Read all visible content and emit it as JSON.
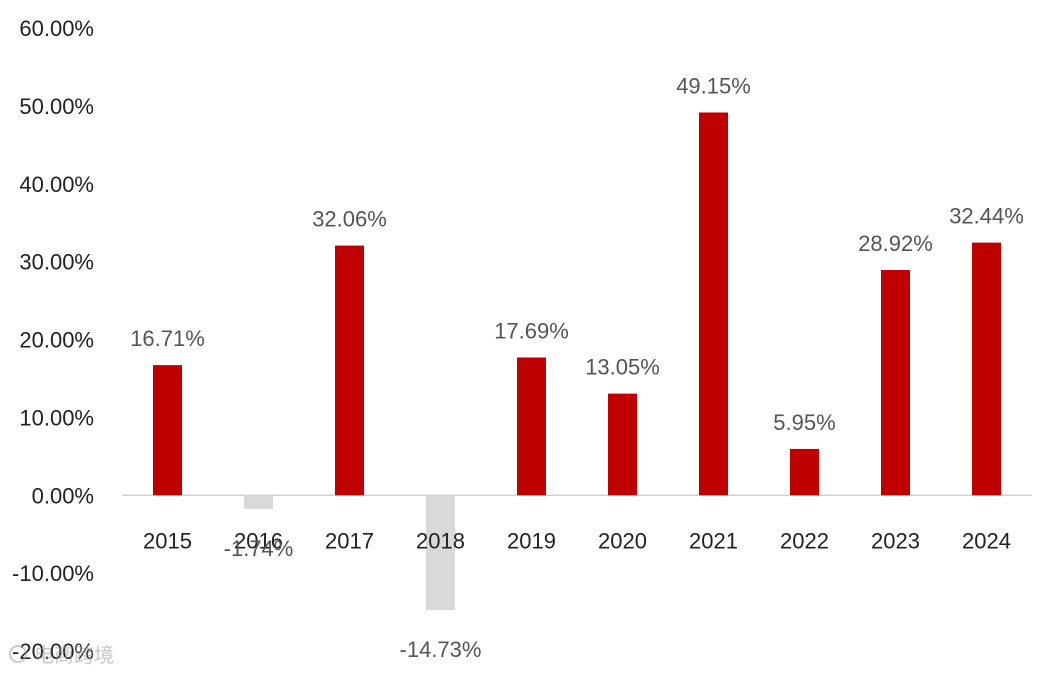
{
  "chart_data": {
    "type": "bar",
    "title": "",
    "xlabel": "",
    "ylabel": "",
    "categories": [
      "2015",
      "2016",
      "2017",
      "2018",
      "2019",
      "2020",
      "2021",
      "2022",
      "2023",
      "2024"
    ],
    "values": [
      16.71,
      -1.74,
      32.06,
      -14.73,
      17.69,
      13.05,
      49.15,
      5.95,
      28.92,
      32.44
    ],
    "value_labels": [
      "16.71%",
      "-1.74%",
      "32.06%",
      "-14.73%",
      "17.69%",
      "13.05%",
      "49.15%",
      "5.95%",
      "28.92%",
      "32.44%"
    ],
    "ylim": [
      -20,
      60
    ],
    "yticks": [
      60,
      50,
      40,
      30,
      20,
      10,
      0,
      -10,
      -20
    ],
    "ytick_labels": [
      "60.00%",
      "50.00%",
      "40.00%",
      "30.00%",
      "20.00%",
      "10.00%",
      "0.00%",
      "-10.00%",
      "-20.00%"
    ],
    "grid": false,
    "legend": "none",
    "colors": {
      "positive": "#c00000",
      "negative": "#d9d9d9",
      "axis": "#d0d0d0"
    }
  },
  "watermark": {
    "text": "电商跨境"
  }
}
